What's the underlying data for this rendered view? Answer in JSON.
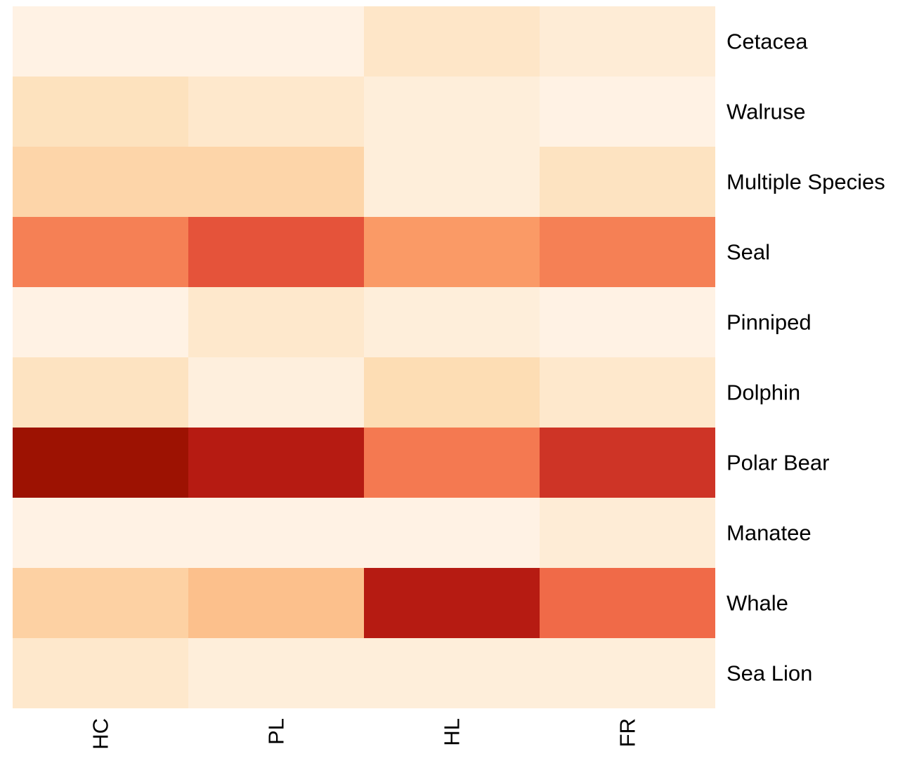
{
  "chart_data": {
    "type": "heatmap",
    "title": "",
    "xlabel": "",
    "ylabel": "",
    "columns": [
      "HC",
      "PL",
      "HL",
      "FR"
    ],
    "rows": [
      "Cetacea",
      "Walruse",
      "Multiple Species",
      "Seal",
      "Pinniped",
      "Dolphin",
      "Polar Bear",
      "Manatee",
      "Whale",
      "Sea Lion"
    ],
    "values": [
      [
        0.02,
        0.02,
        0.1,
        0.06
      ],
      [
        0.13,
        0.09,
        0.05,
        0.02
      ],
      [
        0.2,
        0.2,
        0.05,
        0.12
      ],
      [
        0.56,
        0.68,
        0.48,
        0.56
      ],
      [
        0.02,
        0.09,
        0.05,
        0.02
      ],
      [
        0.12,
        0.04,
        0.16,
        0.09
      ],
      [
        0.98,
        0.85,
        0.58,
        0.76
      ],
      [
        0.02,
        0.02,
        0.02,
        0.06
      ],
      [
        0.22,
        0.3,
        0.85,
        0.62
      ],
      [
        0.09,
        0.05,
        0.05,
        0.05
      ]
    ],
    "value_range": [
      0,
      1
    ],
    "colormap": "Oranges-to-dark-red",
    "colors": {
      "low": "#fff5eb",
      "high": "#991100"
    },
    "row_labels_position": "right",
    "column_labels_position": "bottom",
    "column_labels_rotation": "vertical",
    "legend": "none",
    "grid": false
  }
}
